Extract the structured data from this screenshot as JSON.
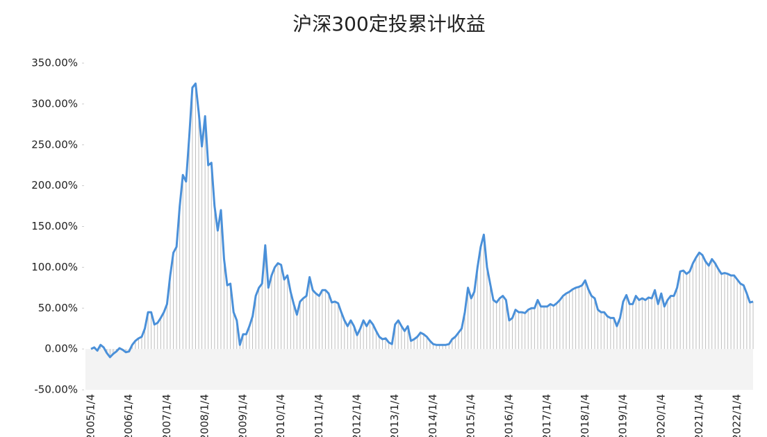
{
  "chart_data": {
    "type": "line",
    "title": "沪深300定投累计收益",
    "color": "#4a90d9",
    "area": true,
    "area_color": "#bdbdbd",
    "ylim": [
      -50,
      350
    ],
    "yticks": [
      {
        "value": -50,
        "label": "-50.00%"
      },
      {
        "value": 0,
        "label": "0.00%"
      },
      {
        "value": 50,
        "label": "50.00%"
      },
      {
        "value": 100,
        "label": "100.00%"
      },
      {
        "value": 150,
        "label": "150.00%"
      },
      {
        "value": 200,
        "label": "200.00%"
      },
      {
        "value": 250,
        "label": "250.00%"
      },
      {
        "value": 300,
        "label": "300.00%"
      },
      {
        "value": 350,
        "label": "350.00%"
      }
    ],
    "categories": [
      "2005/1/4",
      null,
      null,
      null,
      null,
      null,
      null,
      null,
      null,
      null,
      null,
      null,
      "2006/1/4",
      null,
      null,
      null,
      null,
      null,
      null,
      null,
      null,
      null,
      null,
      null,
      "2007/1/4",
      null,
      null,
      null,
      null,
      null,
      null,
      null,
      null,
      null,
      null,
      null,
      "2008/1/4",
      null,
      null,
      null,
      null,
      null,
      null,
      null,
      null,
      null,
      null,
      null,
      "2009/1/4",
      null,
      null,
      null,
      null,
      null,
      null,
      null,
      null,
      null,
      null,
      null,
      "2010/1/4",
      null,
      null,
      null,
      null,
      null,
      null,
      null,
      null,
      null,
      null,
      null,
      "2011/1/4",
      null,
      null,
      null,
      null,
      null,
      null,
      null,
      null,
      null,
      null,
      null,
      "2012/1/4",
      null,
      null,
      null,
      null,
      null,
      null,
      null,
      null,
      null,
      null,
      null,
      "2013/1/4",
      null,
      null,
      null,
      null,
      null,
      null,
      null,
      null,
      null,
      null,
      null,
      "2014/1/4",
      null,
      null,
      null,
      null,
      null,
      null,
      null,
      null,
      null,
      null,
      null,
      "2015/1/4",
      null,
      null,
      null,
      null,
      null,
      null,
      null,
      null,
      null,
      null,
      null,
      "2016/1/4",
      null,
      null,
      null,
      null,
      null,
      null,
      null,
      null,
      null,
      null,
      null,
      "2017/1/4",
      null,
      null,
      null,
      null,
      null,
      null,
      null,
      null,
      null,
      null,
      null,
      "2018/1/4",
      null,
      null,
      null,
      null,
      null,
      null,
      null,
      null,
      null,
      null,
      null,
      "2019/1/4",
      null,
      null,
      null,
      null,
      null,
      null,
      null,
      null,
      null,
      null,
      null,
      "2020/1/4",
      null,
      null,
      null,
      null,
      null,
      null,
      null,
      null,
      null,
      null,
      null,
      "2021/1/4",
      null,
      null,
      null,
      null,
      null,
      null,
      null,
      null,
      null,
      null,
      null,
      "2022/1/4",
      null,
      null,
      null,
      null,
      null
    ],
    "values": [
      0,
      2,
      -2,
      5,
      2,
      -5,
      -10,
      -6,
      -3,
      1,
      -1,
      -4,
      -3,
      5,
      10,
      13,
      15,
      25,
      45,
      45,
      30,
      32,
      38,
      45,
      55,
      90,
      118,
      125,
      175,
      213,
      205,
      260,
      320,
      325,
      290,
      248,
      285,
      225,
      228,
      175,
      145,
      170,
      110,
      78,
      80,
      45,
      35,
      5,
      18,
      18,
      28,
      40,
      65,
      75,
      80,
      127,
      75,
      90,
      100,
      105,
      103,
      85,
      90,
      70,
      55,
      42,
      58,
      62,
      65,
      88,
      72,
      68,
      65,
      72,
      72,
      68,
      57,
      58,
      56,
      45,
      35,
      28,
      35,
      28,
      17,
      25,
      35,
      28,
      35,
      30,
      22,
      15,
      12,
      13,
      8,
      6,
      30,
      35,
      28,
      22,
      28,
      10,
      12,
      15,
      20,
      18,
      15,
      10,
      6,
      5,
      5,
      5,
      5,
      6,
      12,
      15,
      20,
      25,
      45,
      75,
      62,
      70,
      100,
      125,
      140,
      100,
      80,
      60,
      57,
      62,
      65,
      60,
      35,
      38,
      48,
      45,
      45,
      44,
      48,
      50,
      50,
      60,
      52,
      52,
      52,
      55,
      53,
      56,
      60,
      65,
      68,
      70,
      73,
      75,
      76,
      78,
      84,
      73,
      65,
      62,
      48,
      45,
      45,
      40,
      38,
      38,
      28,
      38,
      58,
      66,
      55,
      55,
      65,
      60,
      62,
      60,
      63,
      62,
      72,
      55,
      68,
      52,
      60,
      65,
      65,
      75,
      95,
      96,
      92,
      95,
      105,
      112,
      118,
      115,
      107,
      102,
      110,
      105,
      98,
      92,
      93,
      92,
      90,
      90,
      85,
      80,
      78,
      68,
      57,
      58
    ]
  }
}
